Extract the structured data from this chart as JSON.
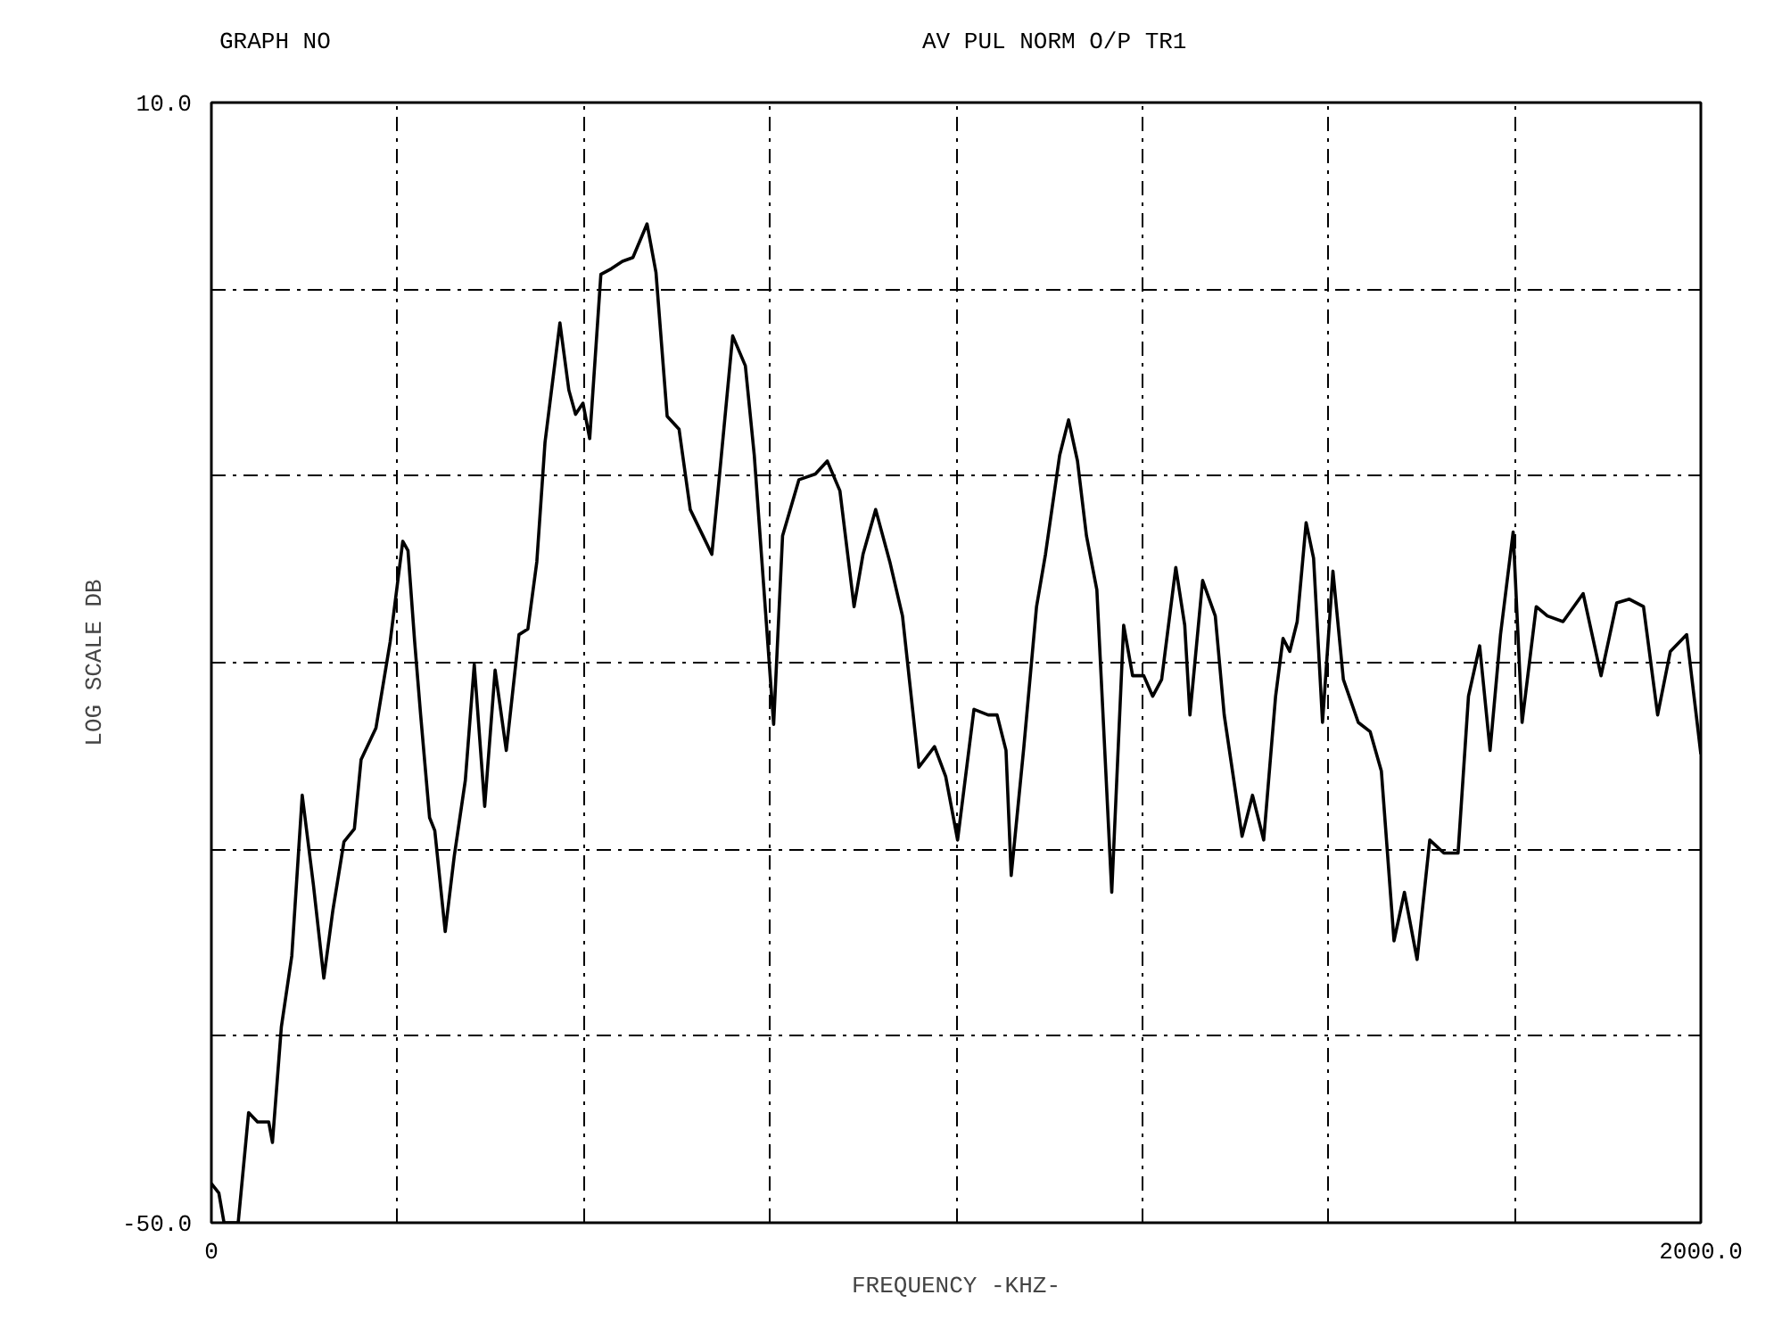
{
  "chart_data": {
    "type": "line",
    "title": "GRAPH NO",
    "subtitle": "AV PUL NORM O/P TR1",
    "xlabel": "FREQUENCY -KHZ-",
    "ylabel": "LOG SCALE DB",
    "xlim": [
      0,
      2000
    ],
    "ylim": [
      -50,
      10
    ],
    "xticks": [
      {
        "value": 0,
        "label": "0"
      },
      {
        "value": 250,
        "label": null
      },
      {
        "value": 500,
        "label": null
      },
      {
        "value": 750,
        "label": null
      },
      {
        "value": 1000,
        "label": null
      },
      {
        "value": 1250,
        "label": null
      },
      {
        "value": 1500,
        "label": null
      },
      {
        "value": 1750,
        "label": null
      },
      {
        "value": 2000,
        "label": "2000.0"
      }
    ],
    "yticks": [
      {
        "value": -50,
        "label": "-50.0"
      },
      {
        "value": -40,
        "label": null
      },
      {
        "value": -30,
        "label": null
      },
      {
        "value": -20,
        "label": null
      },
      {
        "value": -10,
        "label": null
      },
      {
        "value": 0,
        "label": null
      },
      {
        "value": 10,
        "label": "10.0"
      }
    ],
    "grid": true,
    "line_style": "solid",
    "series": [
      {
        "color": "#000000",
        "x": [
          0,
          10,
          17,
          36,
          50,
          62,
          77,
          82,
          94,
          108,
          122,
          137,
          151,
          163,
          178,
          192,
          201,
          221,
          240,
          257,
          264,
          273,
          281,
          293,
          300,
          314,
          326,
          341,
          353,
          367,
          381,
          396,
          413,
          425,
          437,
          448,
          468,
          480,
          489,
          499,
          508,
          523,
          537,
          552,
          566,
          585,
          597,
          612,
          628,
          643,
          660,
          672,
          681,
          700,
          717,
          729,
          755,
          767,
          789,
          811,
          827,
          844,
          863,
          875,
          892,
          911,
          928,
          950,
          971,
          986,
          1002,
          1024,
          1043,
          1055,
          1067,
          1074,
          1091,
          1108,
          1120,
          1139,
          1151,
          1163,
          1175,
          1189,
          1209,
          1225,
          1237,
          1252,
          1264,
          1276,
          1295,
          1307,
          1314,
          1331,
          1348,
          1360,
          1367,
          1384,
          1398,
          1413,
          1429,
          1439,
          1448,
          1458,
          1470,
          1480,
          1492,
          1506,
          1520,
          1540,
          1556,
          1571,
          1588,
          1602,
          1619,
          1636,
          1655,
          1674,
          1688,
          1703,
          1717,
          1731,
          1748,
          1760,
          1779,
          1794,
          1815,
          1842,
          1866,
          1887,
          1904,
          1923,
          1942,
          1959,
          1981,
          1995,
          2000
        ],
        "values": [
          -47.9,
          -48.4,
          -50,
          -50,
          -44.1,
          -44.6,
          -44.6,
          -45.7,
          -39.5,
          -35.7,
          -27.1,
          -31.9,
          -36.9,
          -33.3,
          -29.6,
          -28.9,
          -25.2,
          -23.5,
          -18.9,
          -13.5,
          -14.0,
          -18.9,
          -22.8,
          -28.3,
          -29.0,
          -34.4,
          -30.4,
          -26.3,
          -20.1,
          -27.7,
          -20.4,
          -24.7,
          -18.5,
          -18.2,
          -14.6,
          -8.2,
          -1.8,
          -5.4,
          -6.7,
          -6.1,
          -8.0,
          0.8,
          1.1,
          1.5,
          1.7,
          3.5,
          0.9,
          -6.8,
          -7.5,
          -11.8,
          -13.2,
          -14.2,
          -10.5,
          -2.5,
          -4.1,
          -8.9,
          -23.3,
          -13.2,
          -10.2,
          -9.9,
          -9.2,
          -10.8,
          -17.0,
          -14.2,
          -11.8,
          -14.6,
          -17.5,
          -25.6,
          -24.5,
          -26.1,
          -29.5,
          -22.5,
          -22.8,
          -22.8,
          -24.7,
          -31.4,
          -24.5,
          -17.0,
          -14.2,
          -8.9,
          -7.0,
          -9.2,
          -13.2,
          -16.1,
          -32.3,
          -18.0,
          -20.7,
          -20.7,
          -21.8,
          -20.9,
          -14.9,
          -18.0,
          -22.8,
          -15.6,
          -17.5,
          -22.8,
          -24.7,
          -29.3,
          -27.1,
          -29.5,
          -21.8,
          -18.7,
          -19.4,
          -17.8,
          -12.5,
          -14.4,
          -23.2,
          -15.1,
          -20.9,
          -23.2,
          -23.7,
          -25.8,
          -34.9,
          -32.3,
          -35.9,
          -29.5,
          -30.2,
          -30.2,
          -21.8,
          -19.1,
          -24.7,
          -18.5,
          -13.0,
          -23.2,
          -17.0,
          -17.5,
          -17.8,
          -16.3,
          -20.7,
          -16.8,
          -16.6,
          -17.0,
          -22.8,
          -19.4,
          -18.5,
          -23.2,
          -24.9
        ]
      }
    ]
  }
}
